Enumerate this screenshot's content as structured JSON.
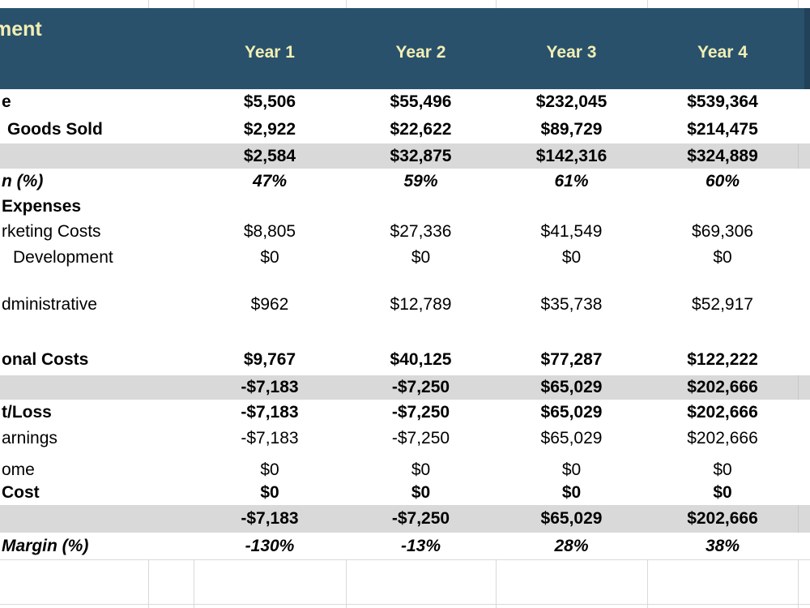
{
  "header": {
    "title_fragment": "ment",
    "columns": [
      "Year 1",
      "Year 2",
      "Year 3",
      "Year 4"
    ]
  },
  "colors": {
    "header_band": "#29516c",
    "header_text": "#f1eeb4",
    "shaded_row": "#d9d9d9",
    "gridline": "#d9d9d9",
    "body_text": "#000000"
  },
  "table": {
    "rows": [
      {
        "label": "e",
        "style": "bold",
        "indent": 2,
        "values": [
          "$5,506",
          "$55,496",
          "$232,045",
          "$539,364"
        ]
      },
      {
        "label": "Goods Sold",
        "style": "bold",
        "indent": 9,
        "values": [
          "$2,922",
          "$22,622",
          "$89,729",
          "$214,475"
        ]
      },
      {
        "label": "",
        "style": "bold",
        "shaded": true,
        "values": [
          "$2,584",
          "$32,875",
          "$142,316",
          "$324,889"
        ]
      },
      {
        "label": "n (%)",
        "style": "bi",
        "indent": 2,
        "values": [
          "47%",
          "59%",
          "61%",
          "60%"
        ]
      },
      {
        "label": "Expenses",
        "style": "bold",
        "indent": 2,
        "values": [
          "",
          "",
          "",
          ""
        ]
      },
      {
        "label": "rketing Costs",
        "style": "regular",
        "indent": 2,
        "values": [
          "$8,805",
          "$27,336",
          "$41,549",
          "$69,306"
        ]
      },
      {
        "label": "Development",
        "style": "regular",
        "indent": 16,
        "values": [
          "$0",
          "$0",
          "$0",
          "$0"
        ]
      },
      {
        "label": "",
        "style": "regular",
        "empty": true,
        "values": [
          "",
          "",
          "",
          ""
        ]
      },
      {
        "label": "dministrative",
        "style": "regular",
        "indent": 2,
        "values": [
          "$962",
          "$12,789",
          "$35,738",
          "$52,917"
        ]
      },
      {
        "label": "",
        "style": "regular",
        "empty": true,
        "values": [
          "",
          "",
          "",
          ""
        ]
      },
      {
        "label": "onal Costs",
        "style": "bold",
        "indent": 2,
        "values": [
          "$9,767",
          "$40,125",
          "$77,287",
          "$122,222"
        ]
      },
      {
        "label": "",
        "style": "bold",
        "shaded": true,
        "values": [
          "-$7,183",
          "-$7,250",
          "$65,029",
          "$202,666"
        ]
      },
      {
        "label": "t/Loss",
        "style": "bold",
        "indent": 2,
        "values": [
          "-$7,183",
          "-$7,250",
          "$65,029",
          "$202,666"
        ]
      },
      {
        "label": "arnings",
        "style": "regular",
        "indent": 2,
        "values": [
          "-$7,183",
          "-$7,250",
          "$65,029",
          "$202,666"
        ]
      },
      {
        "label": "",
        "style": "regular",
        "empty": true,
        "values": [
          "",
          "",
          "",
          ""
        ]
      },
      {
        "label": "ome",
        "style": "regular",
        "indent": 2,
        "values": [
          "$0",
          "$0",
          "$0",
          "$0"
        ]
      },
      {
        "label": "Cost",
        "style": "bold",
        "indent": 2,
        "values": [
          "$0",
          "$0",
          "$0",
          "$0"
        ]
      },
      {
        "label": "",
        "style": "bold",
        "shaded": true,
        "values": [
          "-$7,183",
          "-$7,250",
          "$65,029",
          "$202,666"
        ]
      },
      {
        "label": "Margin (%)",
        "style": "bi",
        "indent": 2,
        "values": [
          "-130%",
          "-13%",
          "28%",
          "38%"
        ]
      }
    ]
  }
}
